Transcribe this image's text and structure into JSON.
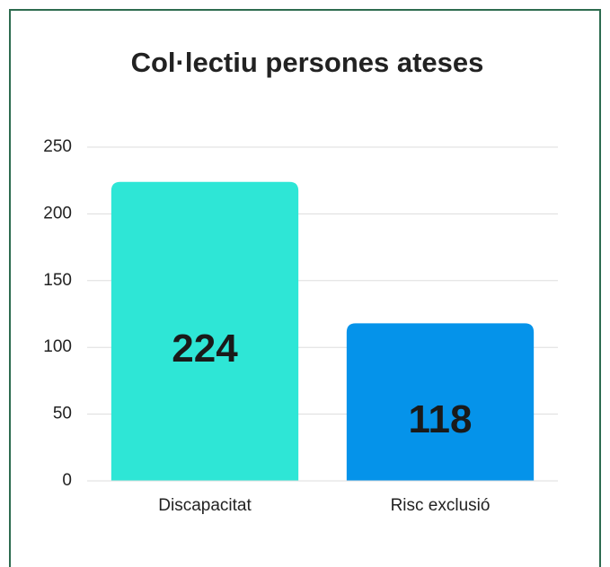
{
  "chart_data": {
    "type": "bar",
    "title": "Col·lectiu persones ateses",
    "categories": [
      "Discapacitat",
      "Risc exclusió"
    ],
    "values": [
      224,
      118
    ],
    "colors": [
      "#2ee6d6",
      "#0593ea"
    ],
    "ylim": [
      0,
      250
    ],
    "yticks": [
      0,
      50,
      100,
      150,
      200,
      250
    ],
    "grid": true
  }
}
